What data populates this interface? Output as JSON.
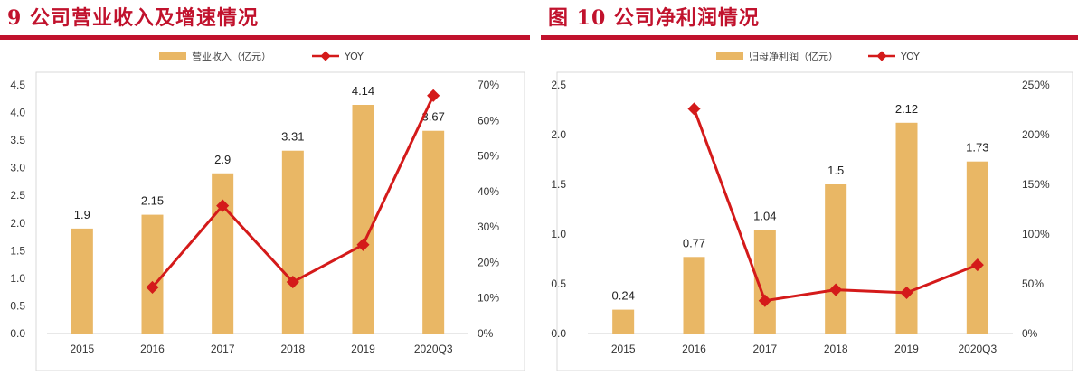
{
  "colors": {
    "bar": "#e9b765",
    "line": "#d41a1a",
    "title": "#c1122d",
    "axis": "#d9d9d9"
  },
  "chart_data": [
    {
      "type": "bar",
      "title": "9   公司营业收入及增速情况",
      "categories": [
        "2015",
        "2016",
        "2017",
        "2018",
        "2019",
        "2020Q3"
      ],
      "series": [
        {
          "name": "营业收入（亿元）",
          "axis": "left",
          "values": [
            1.9,
            2.15,
            2.9,
            3.31,
            4.14,
            3.67
          ],
          "labels": [
            "1.9",
            "2.15",
            "2.9",
            "3.31",
            "4.14",
            "3.67"
          ]
        },
        {
          "name": "YOY",
          "type": "line",
          "axis": "right",
          "values": [
            null,
            13,
            36,
            14.5,
            25,
            67
          ]
        }
      ],
      "ylim": [
        0,
        4.5
      ],
      "yticks": [
        "0.0",
        "0.5",
        "1.0",
        "1.5",
        "2.0",
        "2.5",
        "3.0",
        "3.5",
        "4.0",
        "4.5"
      ],
      "y2lim": [
        0,
        70
      ],
      "y2ticks": [
        "0%",
        "10%",
        "20%",
        "30%",
        "40%",
        "50%",
        "60%",
        "70%"
      ],
      "legend": "top",
      "grid": false
    },
    {
      "type": "bar",
      "title": "图 10   公司净利润情况",
      "categories": [
        "2015",
        "2016",
        "2017",
        "2018",
        "2019",
        "2020Q3"
      ],
      "series": [
        {
          "name": "归母净利润（亿元）",
          "axis": "left",
          "values": [
            0.24,
            0.77,
            1.04,
            1.5,
            2.12,
            1.73
          ],
          "labels": [
            "0.24",
            "0.77",
            "1.04",
            "1.5",
            "2.12",
            "1.73"
          ]
        },
        {
          "name": "YOY",
          "type": "line",
          "axis": "right",
          "values": [
            null,
            226,
            33,
            44,
            41,
            69
          ]
        }
      ],
      "ylim": [
        0,
        2.5
      ],
      "yticks": [
        "0.0",
        "0.5",
        "1.0",
        "1.5",
        "2.0",
        "2.5"
      ],
      "y2lim": [
        0,
        250
      ],
      "y2ticks": [
        "0%",
        "50%",
        "100%",
        "150%",
        "200%",
        "250%"
      ],
      "legend": "top",
      "grid": false
    }
  ]
}
